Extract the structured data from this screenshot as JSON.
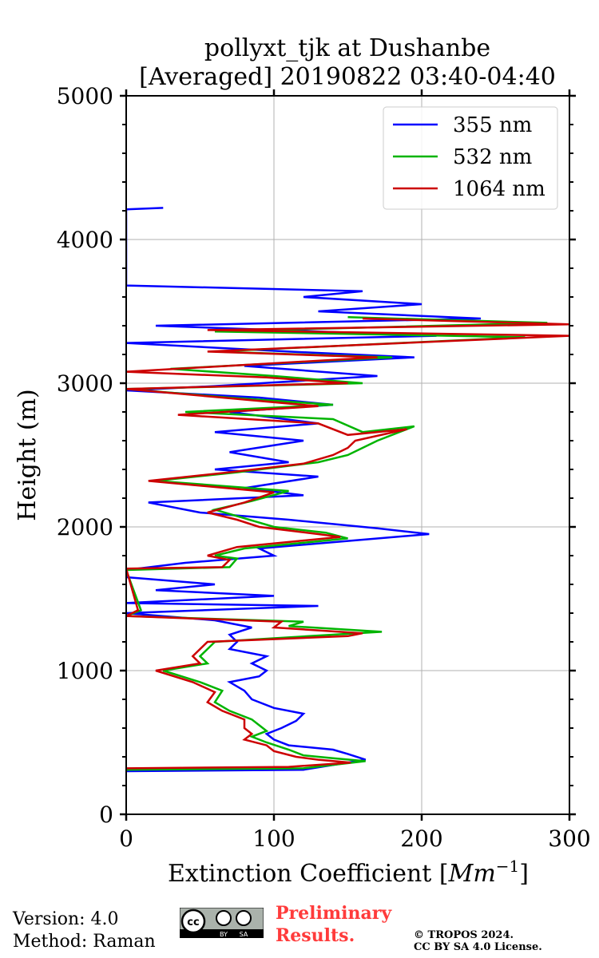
{
  "chart_data": {
    "type": "line",
    "orientation": "vertical-profile",
    "title_line1": "pollyxt_tjk at Dushanbe",
    "title_line2": "[Averaged] 20190822 03:40-04:40",
    "xlabel": "Extinction Coefficient [",
    "xlabel_unit": "Mm",
    "xlabel_exp": "−1",
    "xlabel_close": "]",
    "ylabel": "Height (m)",
    "xlim": [
      0,
      300
    ],
    "ylim": [
      0,
      5000
    ],
    "x_ticks": [
      0,
      100,
      200,
      300
    ],
    "x_tick_labels": [
      "0",
      "100",
      "200",
      "300"
    ],
    "y_ticks": [
      0,
      1000,
      2000,
      3000,
      4000,
      5000
    ],
    "y_tick_labels": [
      "0",
      "1000",
      "2000",
      "3000",
      "4000",
      "5000"
    ],
    "grid": true,
    "legend_position": "top-right",
    "series": [
      {
        "name": "355 nm",
        "color": "#0000ff",
        "points": [
          [
            0,
            300
          ],
          [
            120,
            310
          ],
          [
            162,
            380
          ],
          [
            150,
            420
          ],
          [
            140,
            450
          ],
          [
            110,
            480
          ],
          [
            100,
            520
          ],
          [
            95,
            560
          ],
          [
            105,
            600
          ],
          [
            115,
            650
          ],
          [
            120,
            700
          ],
          [
            100,
            740
          ],
          [
            85,
            800
          ],
          [
            80,
            860
          ],
          [
            70,
            920
          ],
          [
            90,
            960
          ],
          [
            95,
            1000
          ],
          [
            85,
            1050
          ],
          [
            95,
            1100
          ],
          [
            70,
            1150
          ],
          [
            75,
            1200
          ],
          [
            70,
            1250
          ],
          [
            85,
            1300
          ],
          [
            60,
            1350
          ],
          [
            0,
            1400
          ],
          [
            130,
            1450
          ],
          [
            0,
            1470
          ],
          [
            100,
            1520
          ],
          [
            20,
            1560
          ],
          [
            60,
            1600
          ],
          [
            0,
            1650
          ],
          [
            0,
            1700
          ],
          [
            40,
            1750
          ],
          [
            100,
            1800
          ],
          [
            90,
            1850
          ],
          [
            205,
            1950
          ],
          [
            170,
            1990
          ],
          [
            110,
            2050
          ],
          [
            50,
            2100
          ],
          [
            15,
            2170
          ],
          [
            120,
            2220
          ],
          [
            80,
            2270
          ],
          [
            130,
            2350
          ],
          [
            60,
            2400
          ],
          [
            110,
            2450
          ],
          [
            70,
            2520
          ],
          [
            120,
            2600
          ],
          [
            60,
            2660
          ],
          [
            130,
            2720
          ],
          [
            70,
            2800
          ],
          [
            140,
            2850
          ],
          [
            90,
            2900
          ],
          [
            0,
            2950
          ],
          [
            60,
            2980
          ],
          [
            170,
            3050
          ],
          [
            80,
            3120
          ],
          [
            195,
            3180
          ],
          [
            110,
            3220
          ],
          [
            0,
            3280
          ],
          [
            210,
            3330
          ],
          [
            20,
            3400
          ],
          [
            240,
            3450
          ],
          [
            130,
            3500
          ],
          [
            200,
            3550
          ],
          [
            120,
            3600
          ],
          [
            160,
            3640
          ],
          [
            0,
            3680
          ],
          [
            0,
            4210
          ],
          [
            25,
            4220
          ]
        ]
      },
      {
        "name": "532 nm",
        "color": "#00b400",
        "points": [
          [
            0,
            310
          ],
          [
            120,
            320
          ],
          [
            162,
            370
          ],
          [
            140,
            390
          ],
          [
            120,
            410
          ],
          [
            110,
            450
          ],
          [
            95,
            500
          ],
          [
            85,
            540
          ],
          [
            95,
            580
          ],
          [
            90,
            620
          ],
          [
            85,
            660
          ],
          [
            70,
            720
          ],
          [
            60,
            780
          ],
          [
            65,
            860
          ],
          [
            50,
            920
          ],
          [
            25,
            1000
          ],
          [
            55,
            1050
          ],
          [
            50,
            1100
          ],
          [
            55,
            1150
          ],
          [
            60,
            1200
          ],
          [
            140,
            1250
          ],
          [
            173,
            1270
          ],
          [
            110,
            1310
          ],
          [
            120,
            1340
          ],
          [
            0,
            1380
          ],
          [
            10,
            1420
          ],
          [
            0,
            1700
          ],
          [
            70,
            1720
          ],
          [
            75,
            1780
          ],
          [
            60,
            1800
          ],
          [
            80,
            1850
          ],
          [
            150,
            1920
          ],
          [
            135,
            1960
          ],
          [
            100,
            2000
          ],
          [
            80,
            2060
          ],
          [
            60,
            2120
          ],
          [
            85,
            2180
          ],
          [
            110,
            2250
          ],
          [
            20,
            2320
          ],
          [
            75,
            2380
          ],
          [
            130,
            2450
          ],
          [
            150,
            2500
          ],
          [
            160,
            2550
          ],
          [
            170,
            2600
          ],
          [
            195,
            2700
          ],
          [
            160,
            2660
          ],
          [
            140,
            2750
          ],
          [
            40,
            2800
          ],
          [
            140,
            2850
          ],
          [
            70,
            2900
          ],
          [
            0,
            2960
          ],
          [
            160,
            3000
          ],
          [
            100,
            3050
          ],
          [
            30,
            3100
          ],
          [
            180,
            3180
          ],
          [
            60,
            3220
          ],
          [
            270,
            3320
          ],
          [
            60,
            3360
          ],
          [
            285,
            3420
          ],
          [
            150,
            3460
          ]
        ]
      },
      {
        "name": "1064 nm",
        "color": "#cc0000",
        "points": [
          [
            0,
            320
          ],
          [
            110,
            330
          ],
          [
            152,
            360
          ],
          [
            130,
            380
          ],
          [
            115,
            400
          ],
          [
            100,
            440
          ],
          [
            95,
            480
          ],
          [
            80,
            520
          ],
          [
            85,
            560
          ],
          [
            80,
            600
          ],
          [
            80,
            660
          ],
          [
            65,
            720
          ],
          [
            55,
            780
          ],
          [
            60,
            850
          ],
          [
            45,
            920
          ],
          [
            20,
            1000
          ],
          [
            50,
            1050
          ],
          [
            45,
            1100
          ],
          [
            50,
            1150
          ],
          [
            55,
            1200
          ],
          [
            150,
            1240
          ],
          [
            160,
            1260
          ],
          [
            100,
            1300
          ],
          [
            105,
            1340
          ],
          [
            0,
            1380
          ],
          [
            8,
            1420
          ],
          [
            0,
            1710
          ],
          [
            65,
            1720
          ],
          [
            70,
            1770
          ],
          [
            55,
            1800
          ],
          [
            75,
            1860
          ],
          [
            145,
            1930
          ],
          [
            130,
            1950
          ],
          [
            90,
            2000
          ],
          [
            75,
            2050
          ],
          [
            55,
            2100
          ],
          [
            80,
            2170
          ],
          [
            100,
            2240
          ],
          [
            15,
            2320
          ],
          [
            70,
            2380
          ],
          [
            120,
            2440
          ],
          [
            140,
            2500
          ],
          [
            150,
            2550
          ],
          [
            155,
            2600
          ],
          [
            190,
            2680
          ],
          [
            150,
            2640
          ],
          [
            130,
            2720
          ],
          [
            35,
            2780
          ],
          [
            130,
            2840
          ],
          [
            65,
            2900
          ],
          [
            0,
            2960
          ],
          [
            150,
            3000
          ],
          [
            95,
            3040
          ],
          [
            0,
            3080
          ],
          [
            170,
            3180
          ],
          [
            55,
            3220
          ],
          [
            300,
            3330
          ],
          [
            55,
            3370
          ],
          [
            300,
            3410
          ],
          [
            160,
            3450
          ]
        ]
      }
    ]
  },
  "footer": {
    "version": "Version: 4.0",
    "method": "Method: Raman",
    "preliminary_line1": "Preliminary",
    "preliminary_line2": "Results.",
    "copyright_line1": "© TROPOS 2024.",
    "copyright_line2": "CC BY SA 4.0 License.",
    "badge_text": "cc",
    "badge_by": "BY",
    "badge_sa": "SA"
  }
}
